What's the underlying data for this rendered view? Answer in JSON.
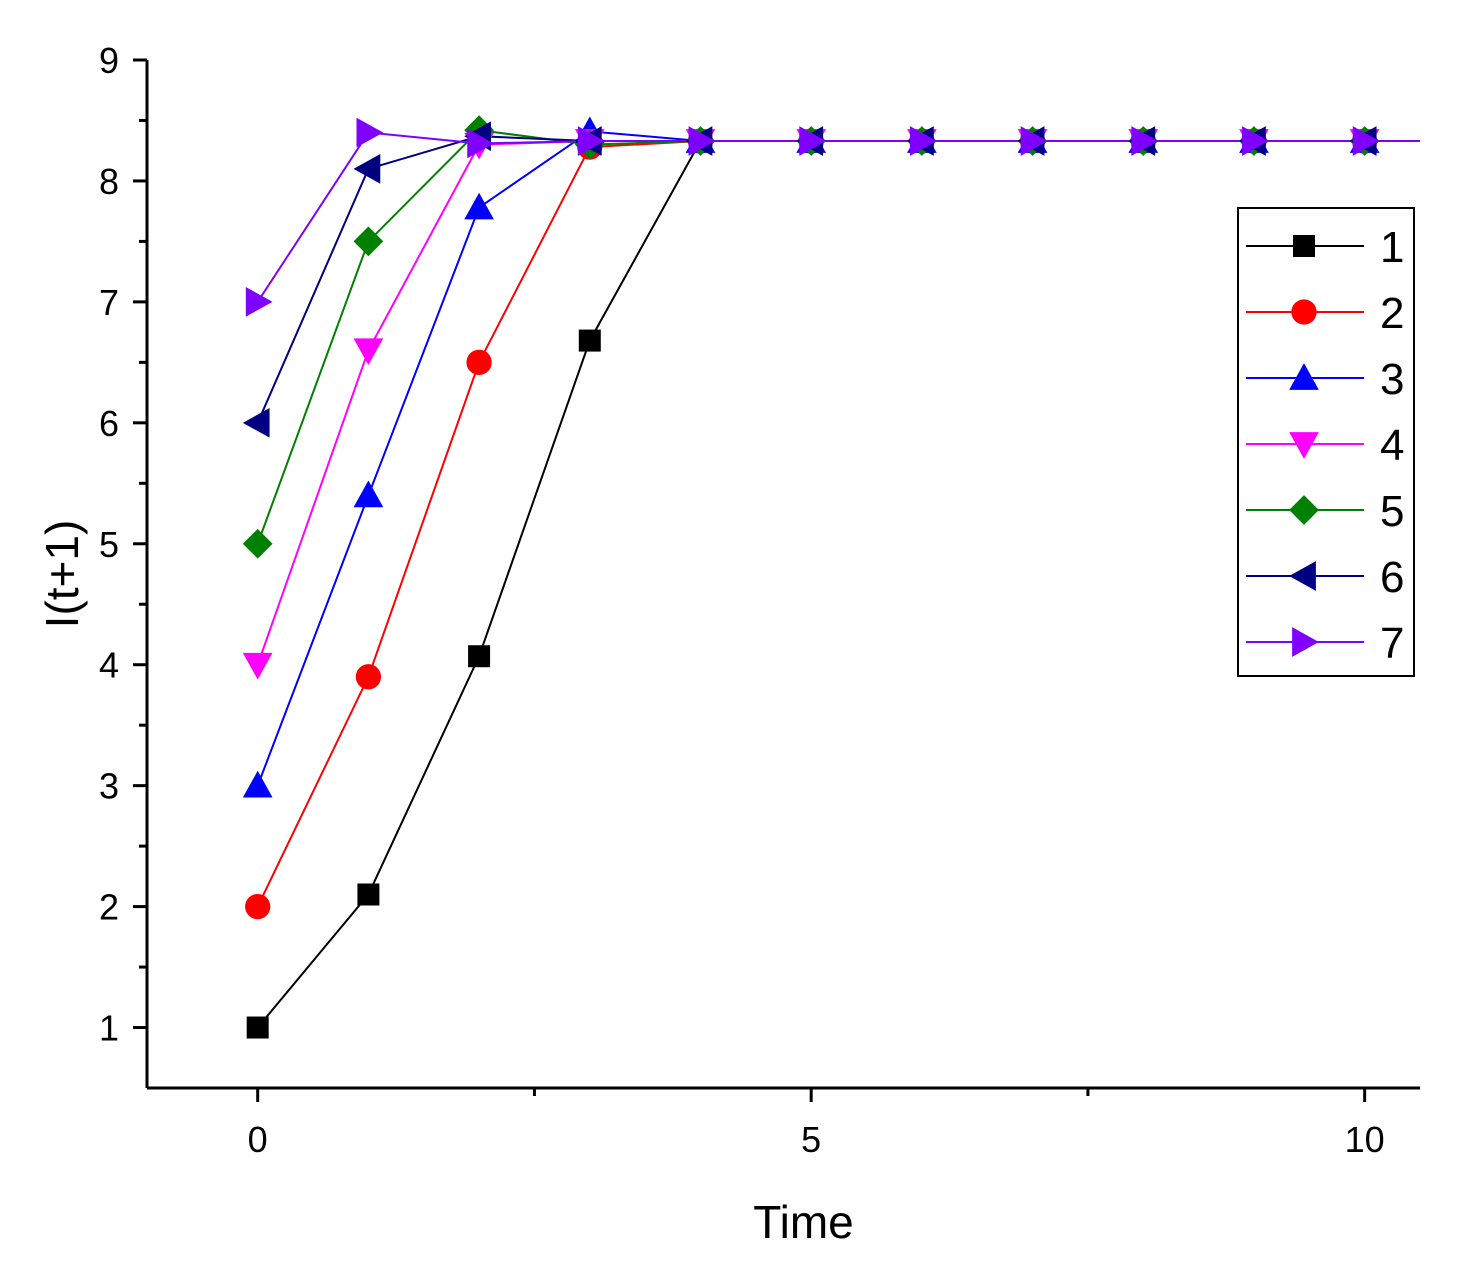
{
  "chart_data": {
    "type": "line",
    "title": "",
    "xlabel": "Time",
    "ylabel": "I(t+1)",
    "xlim": [
      -1,
      10.5
    ],
    "ylim": [
      0.5,
      9
    ],
    "xticks": [
      0,
      5,
      10
    ],
    "xtick_labels": [
      "0",
      "5",
      "10"
    ],
    "yticks": [
      1,
      2,
      3,
      4,
      5,
      6,
      7,
      8,
      9
    ],
    "ytick_labels": [
      "1",
      "2",
      "3",
      "4",
      "5",
      "6",
      "7",
      "8",
      "9"
    ],
    "x": [
      0,
      1,
      2,
      3,
      4,
      5,
      6,
      7,
      8,
      9,
      10
    ],
    "legend_position": "top-right",
    "grid": false,
    "series": [
      {
        "name": "1",
        "color": "#000000",
        "marker": "square",
        "values": [
          1,
          2.1,
          4.07,
          6.68,
          8.33,
          8.33,
          8.33,
          8.33,
          8.33,
          8.33,
          8.33
        ]
      },
      {
        "name": "2",
        "color": "#ff0000",
        "marker": "circle",
        "values": [
          2,
          3.9,
          6.5,
          8.28,
          8.33,
          8.33,
          8.33,
          8.33,
          8.33,
          8.33,
          8.33
        ]
      },
      {
        "name": "3",
        "color": "#0000ff",
        "marker": "triangle-up",
        "values": [
          3,
          5.4,
          7.78,
          8.41,
          8.33,
          8.33,
          8.33,
          8.33,
          8.33,
          8.33,
          8.33
        ]
      },
      {
        "name": "4",
        "color": "#ff00ff",
        "marker": "triangle-down",
        "values": [
          4,
          6.6,
          8.3,
          8.33,
          8.33,
          8.33,
          8.33,
          8.33,
          8.33,
          8.33,
          8.33
        ]
      },
      {
        "name": "5",
        "color": "#008000",
        "marker": "diamond",
        "values": [
          5,
          7.5,
          8.42,
          8.3,
          8.33,
          8.33,
          8.33,
          8.33,
          8.33,
          8.33,
          8.33
        ]
      },
      {
        "name": "6",
        "color": "#000080",
        "marker": "triangle-left",
        "values": [
          6,
          8.1,
          8.37,
          8.33,
          8.33,
          8.33,
          8.33,
          8.33,
          8.33,
          8.33,
          8.33
        ]
      },
      {
        "name": "7",
        "color": "#8000ff",
        "marker": "triangle-right",
        "values": [
          7,
          8.4,
          8.31,
          8.33,
          8.33,
          8.33,
          8.33,
          8.33,
          8.33,
          8.33,
          8.33
        ]
      }
    ]
  }
}
